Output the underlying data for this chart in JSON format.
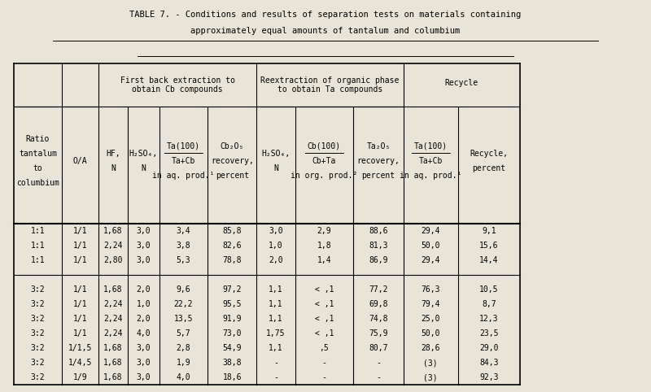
{
  "title_line1": "TABLE 7. - Conditions and results of separation tests on materials containing",
  "title_line2": "approximately equal amounts of tantalum and columbium",
  "bg_color": "#e8e4d8",
  "text_color": "#000000",
  "columns": [
    "Ratio\ntantalum\nto\ncolumbium",
    "O/A",
    "HF,\nN",
    "H₂SO₄,\nN",
    "Ta(100)\nTa+Cb\nin aq. prod.¹",
    "Cb₂O₅\nrecovery,\npercent",
    "H₂SO₄,\nN",
    "Cb(100)\nCb+Ta\nin org. prod.²",
    "Ta₂O₅\nrecovery,\npercent",
    "Ta(100)\nTa+Cb\nin aq. prod.¹",
    "Recycle,\npercent"
  ],
  "rows": [
    [
      "1:1",
      "1/1",
      "1,68",
      "3,0",
      "3,4",
      "85,8",
      "3,0",
      "2,9",
      "88,6",
      "29,4",
      "9,1"
    ],
    [
      "1:1",
      "1/1",
      "2,24",
      "3,0",
      "3,8",
      "82,6",
      "1,0",
      "1,8",
      "81,3",
      "50,0",
      "15,6"
    ],
    [
      "1:1",
      "1/1",
      "2,80",
      "3,0",
      "5,3",
      "78,8",
      "2,0",
      "1,4",
      "86,9",
      "29,4",
      "14,4"
    ],
    [
      "3:2",
      "1/1",
      "1,68",
      "2,0",
      "9,6",
      "97,2",
      "1,1",
      "< ,1",
      "77,2",
      "76,3",
      "10,5"
    ],
    [
      "3:2",
      "1/1",
      "2,24",
      "1,0",
      "22,2",
      "95,5",
      "1,1",
      "< ,1",
      "69,8",
      "79,4",
      "8,7"
    ],
    [
      "3:2",
      "1/1",
      "2,24",
      "2,0",
      "13,5",
      "91,9",
      "1,1",
      "< ,1",
      "74,8",
      "25,0",
      "12,3"
    ],
    [
      "3:2",
      "1/1",
      "2,24",
      "4,0",
      "5,7",
      "73,0",
      "1,75",
      "< ,1",
      "75,9",
      "50,0",
      "23,5"
    ],
    [
      "3:2",
      "1/1,5",
      "1,68",
      "3,0",
      "2,8",
      "54,9",
      "1,1",
      ",5",
      "80,7",
      "28,6",
      "29,0"
    ],
    [
      "3:2",
      "1/4,5",
      "1,68",
      "3,0",
      "1,9",
      "38,8",
      "-",
      "-",
      "-",
      "(3)",
      "84,3"
    ],
    [
      "3:2",
      "1/9",
      "1,68",
      "3,0",
      "4,0",
      "18,6",
      "-",
      "-",
      "-",
      "(3)",
      "92,3"
    ]
  ],
  "font_size": 7.0,
  "title_font_size": 7.5
}
